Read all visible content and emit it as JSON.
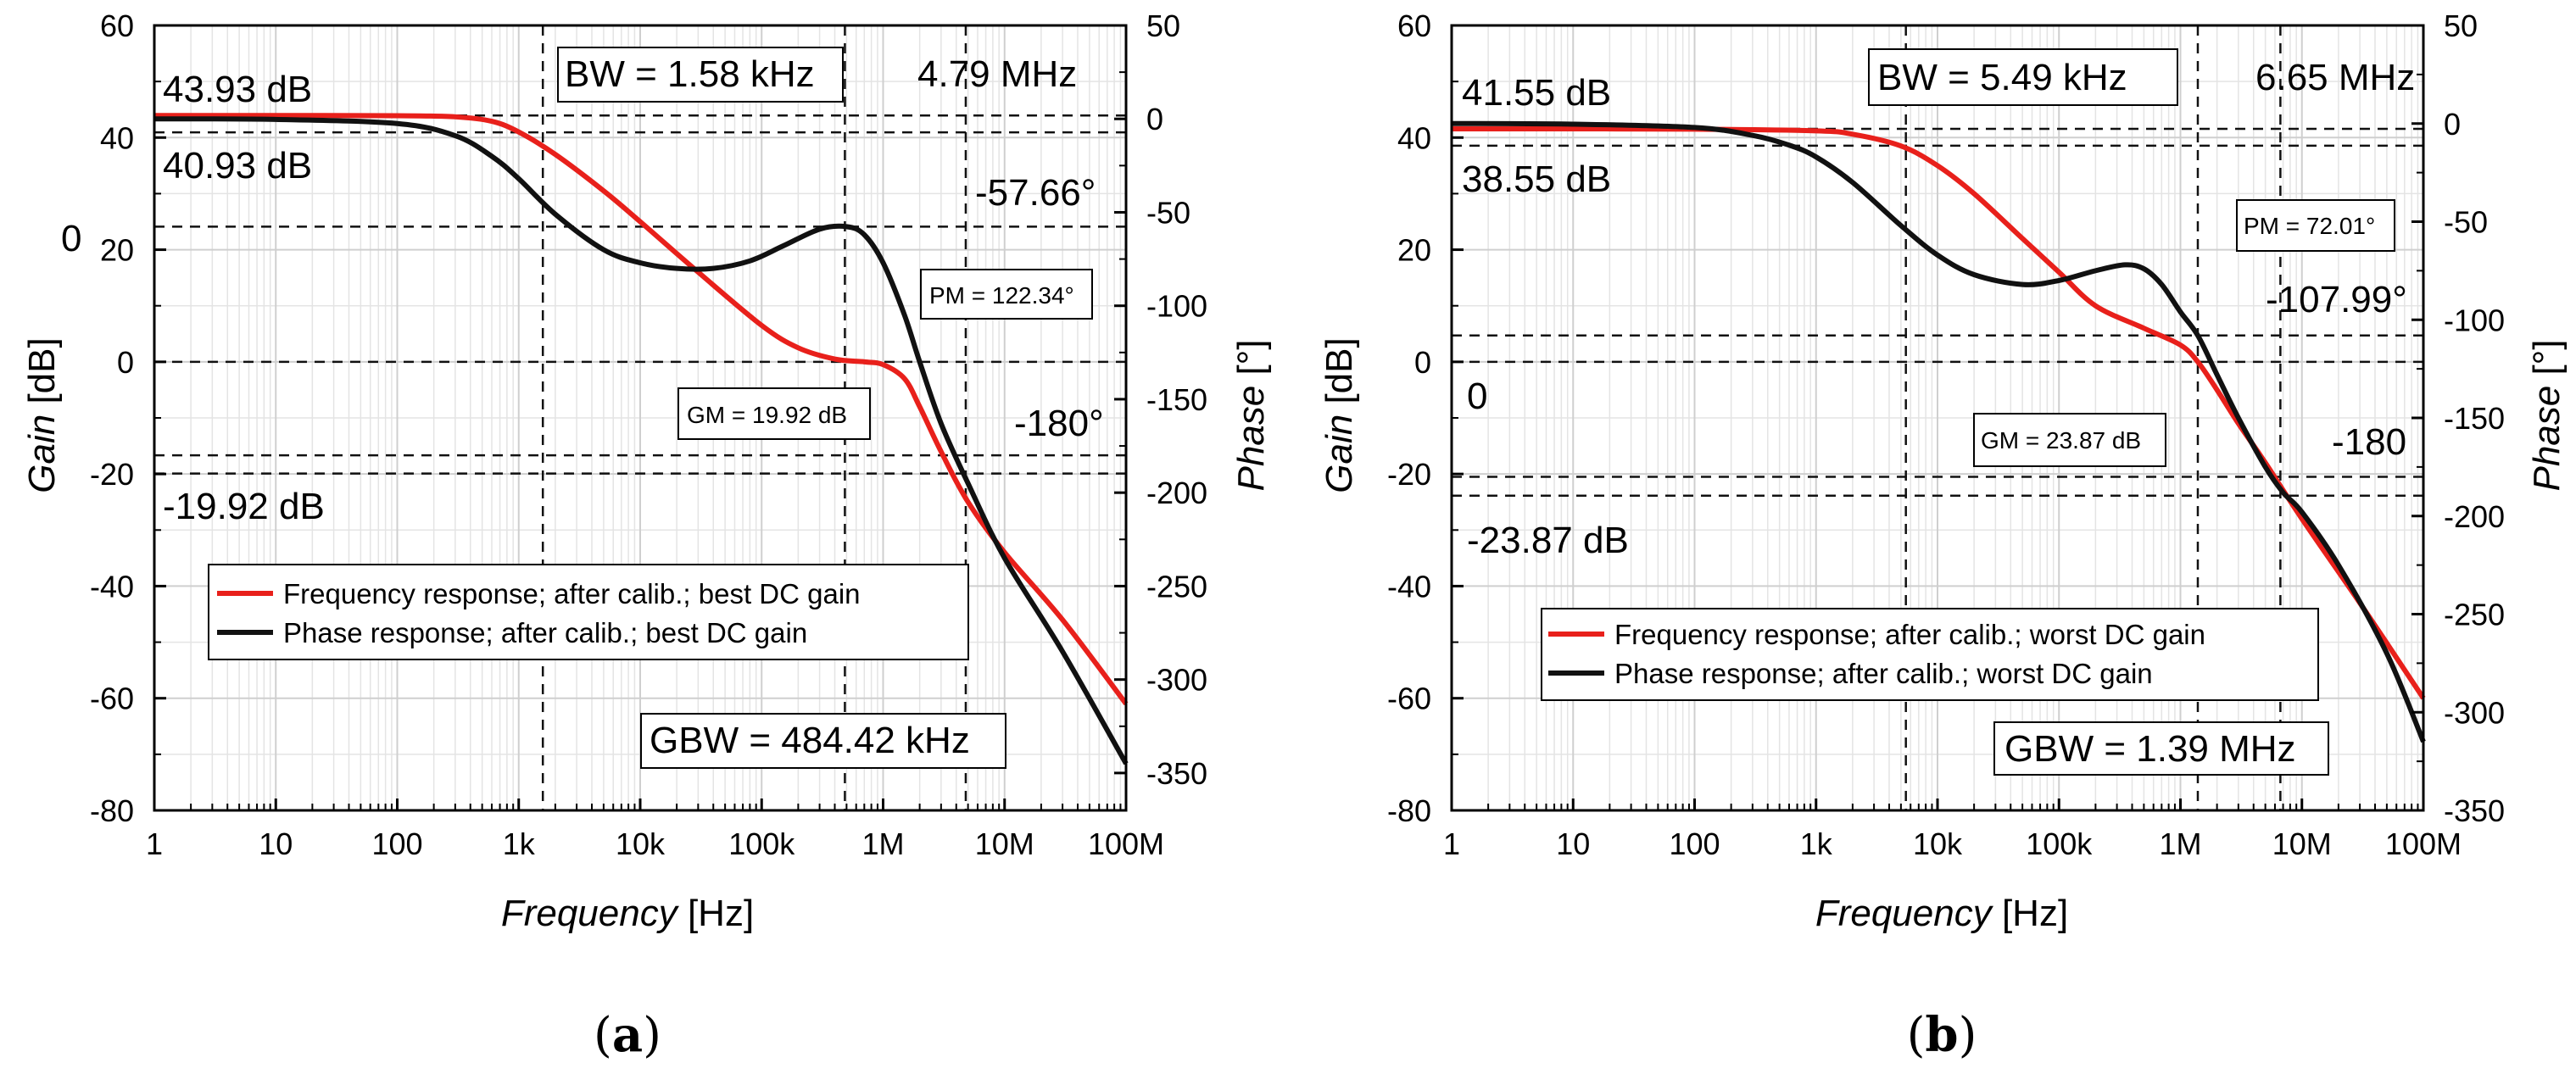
{
  "chart_data": [
    {
      "type": "line",
      "panel_label": "a",
      "xlabel": "Frequency",
      "xlabel_unit": " [Hz]",
      "ylabel": "Gain",
      "ylabel_unit": " [dB]",
      "y2label": "Phase",
      "y2label_unit": " [°]",
      "xscale": "log",
      "xlim": [
        1,
        100000000
      ],
      "xticks": [
        {
          "value": 1,
          "label": "1"
        },
        {
          "value": 10,
          "label": "10"
        },
        {
          "value": 100,
          "label": "100"
        },
        {
          "value": 1000,
          "label": "1k"
        },
        {
          "value": 10000,
          "label": "10k"
        },
        {
          "value": 100000,
          "label": "100k"
        },
        {
          "value": 1000000,
          "label": "1M"
        },
        {
          "value": 10000000,
          "label": "10M"
        },
        {
          "value": 100000000,
          "label": "100M"
        }
      ],
      "ylim": [
        -80,
        60
      ],
      "yticks": [
        -80,
        -60,
        -40,
        -20,
        0,
        20,
        40,
        60
      ],
      "y2lim": [
        -370,
        50
      ],
      "y2ticks": [
        -350,
        -300,
        -250,
        -200,
        -150,
        -100,
        -50,
        0,
        50
      ],
      "grid": true,
      "legend_position": "lower-left",
      "series": [
        {
          "name": "Frequency response; after calib.; best DC gain",
          "axis": "left",
          "color": "#e8201b",
          "x": [
            1,
            10,
            100,
            300,
            600,
            1000,
            2000,
            5000,
            10000,
            30000,
            100000,
            200000,
            400000,
            700000,
            1000000,
            1500000,
            2000000,
            3000000,
            5000000,
            10000000,
            30000000,
            100000000
          ],
          "y": [
            43.93,
            43.93,
            43.9,
            43.7,
            42.9,
            41.0,
            37.0,
            30.5,
            25.0,
            16.0,
            6.5,
            2.5,
            0.5,
            0,
            -0.5,
            -3.0,
            -8.0,
            -16.0,
            -25.0,
            -34.0,
            -46.0,
            -61.0
          ]
        },
        {
          "name": "Phase response; after calib.; best DC gain",
          "axis": "right",
          "color": "#111111",
          "x": [
            1,
            10,
            100,
            300,
            600,
            1000,
            2000,
            5000,
            10000,
            20000,
            40000,
            80000,
            150000,
            300000,
            500000,
            700000,
            1000000,
            1500000,
            2000000,
            3000000,
            5000000,
            10000000,
            30000000,
            100000000
          ],
          "y": [
            0,
            -0.3,
            -2.5,
            -9,
            -20,
            -32,
            -51,
            -70,
            -77,
            -80,
            -80,
            -76,
            -68,
            -59,
            -57.66,
            -62,
            -77,
            -105,
            -130,
            -163,
            -195,
            -235,
            -285,
            -345
          ]
        }
      ],
      "hlines_gain": [
        43.93,
        40.93,
        0,
        -19.92
      ],
      "hlines_phase": [
        -57.66,
        -180
      ],
      "vlines": [
        1580,
        484420,
        4790000
      ],
      "annotations": {
        "gain_max": "43.93 dB",
        "gain_3db": "40.93 dB",
        "zero": "0",
        "gm_neg": "-19.92 dB",
        "bw": "BW = 1.58 kHz",
        "fmax": "4.79 MHz",
        "pm_phase": "-57.66°",
        "pm": "PM = 122.34°",
        "gm": "GM = 19.92 dB",
        "phase180": "-180°",
        "gbw": "GBW = 484.42 kHz"
      }
    },
    {
      "type": "line",
      "panel_label": "b",
      "xlabel": "Frequency",
      "xlabel_unit": " [Hz]",
      "ylabel": "Gain",
      "ylabel_unit": " [dB]",
      "y2label": "Phase",
      "y2label_unit": " [°]",
      "xscale": "log",
      "xlim": [
        1,
        100000000
      ],
      "xticks": [
        {
          "value": 1,
          "label": "1"
        },
        {
          "value": 10,
          "label": "10"
        },
        {
          "value": 100,
          "label": "100"
        },
        {
          "value": 1000,
          "label": "1k"
        },
        {
          "value": 10000,
          "label": "10k"
        },
        {
          "value": 100000,
          "label": "100k"
        },
        {
          "value": 1000000,
          "label": "1M"
        },
        {
          "value": 10000000,
          "label": "10M"
        },
        {
          "value": 100000000,
          "label": "100M"
        }
      ],
      "ylim": [
        -80,
        60
      ],
      "yticks": [
        -80,
        -60,
        -40,
        -20,
        0,
        20,
        40,
        60
      ],
      "y2lim": [
        -350,
        50
      ],
      "y2ticks": [
        -350,
        -300,
        -250,
        -200,
        -150,
        -100,
        -50,
        0,
        50
      ],
      "grid": true,
      "legend_position": "lower-right",
      "series": [
        {
          "name": "Frequency response; after calib.; worst DC gain",
          "axis": "left",
          "color": "#e8201b",
          "x": [
            1,
            10,
            100,
            1000,
            2000,
            5000,
            10000,
            20000,
            50000,
            100000,
            200000,
            500000,
            1000000,
            1390000,
            2000000,
            3000000,
            5000000,
            10000000,
            30000000,
            100000000
          ],
          "y": [
            41.55,
            41.55,
            41.5,
            41.2,
            40.6,
            38.5,
            35.0,
            30.0,
            22.0,
            16.0,
            10.0,
            6.0,
            3.0,
            0,
            -5.0,
            -11.0,
            -18.0,
            -28.0,
            -43.0,
            -60.0
          ]
        },
        {
          "name": "Phase response; after calib.; worst DC gain",
          "axis": "right",
          "color": "#111111",
          "x": [
            1,
            10,
            100,
            300,
            600,
            1000,
            2000,
            5000,
            10000,
            20000,
            50000,
            100000,
            200000,
            350000,
            500000,
            700000,
            1000000,
            1390000,
            2000000,
            3000000,
            5000000,
            7000000,
            10000000,
            20000000,
            50000000,
            100000000
          ],
          "y": [
            0,
            -0.3,
            -2,
            -6,
            -11,
            -17,
            -30,
            -52,
            -67,
            -77,
            -82,
            -80,
            -75,
            -72,
            -74,
            -82,
            -96,
            -107.99,
            -128,
            -150,
            -175,
            -188,
            -198,
            -225,
            -270,
            -315
          ]
        }
      ],
      "hlines_gain": [
        41.55,
        38.55,
        0,
        -23.87
      ],
      "hlines_phase": [
        -107.99,
        -180
      ],
      "vlines": [
        5490,
        1390000,
        6650000
      ],
      "annotations": {
        "gain_max": "41.55 dB",
        "gain_3db": "38.55 dB",
        "zero": "0",
        "gm_neg": "-23.87 dB",
        "bw": "BW = 5.49 kHz",
        "fmax": "6.65 MHz",
        "pm_phase": "-107.99°",
        "pm": "PM = 72.01°",
        "gm": "GM = 23.87 dB",
        "phase180": "-180",
        "gbw": "GBW = 1.39 MHz"
      }
    }
  ]
}
